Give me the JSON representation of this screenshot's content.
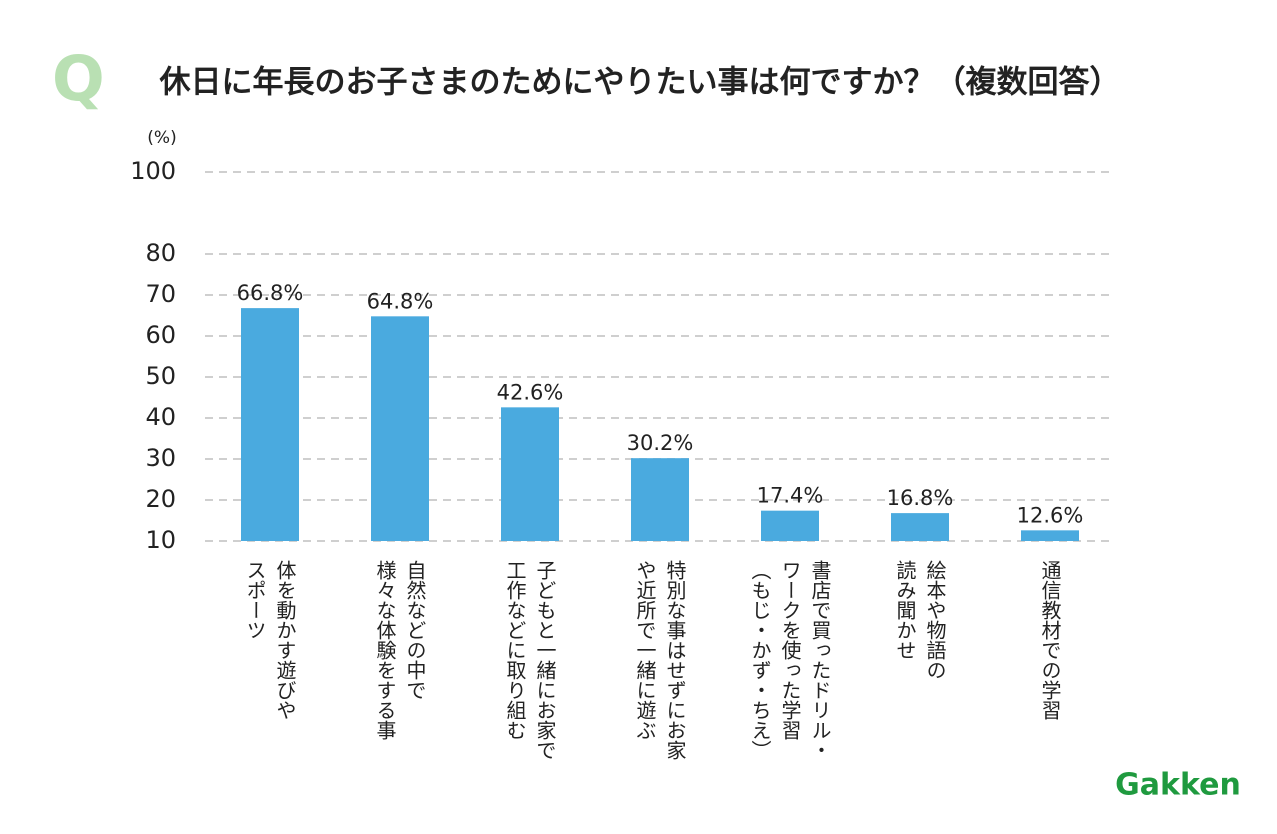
{
  "chart_data": {
    "type": "bar",
    "title_mark": "Q",
    "title": "休日に年長のお子さまのためにやりたい事は何ですか？（複数回答）",
    "y_unit": "(%)",
    "categories": [
      [
        "体を動かす遊びや",
        "スポーツ"
      ],
      [
        "自然などの中で",
        "様々な体験をする事"
      ],
      [
        "子どもと一緒にお家で",
        "工作などに取り組む"
      ],
      [
        "特別な事はせずにお家",
        "や近所で一緒に遊ぶ"
      ],
      [
        "書店で買ったドリル・",
        "ワークを使った学習",
        "（もじ・かず・ちえ）"
      ],
      [
        "絵本や物語の",
        "読み聞かせ"
      ],
      [
        "通信教材での学習"
      ]
    ],
    "values": [
      66.8,
      64.8,
      42.6,
      30.2,
      17.4,
      16.8,
      12.6
    ],
    "value_labels": [
      "66.8%",
      "64.8%",
      "42.6%",
      "30.2%",
      "17.4%",
      "16.8%",
      "12.6%"
    ],
    "color": "#4aaadf",
    "ylim": [
      10,
      100
    ],
    "yticks": [
      100,
      80,
      70,
      60,
      50,
      40,
      30,
      20,
      10
    ],
    "grid": true,
    "logo": "Gakken"
  }
}
